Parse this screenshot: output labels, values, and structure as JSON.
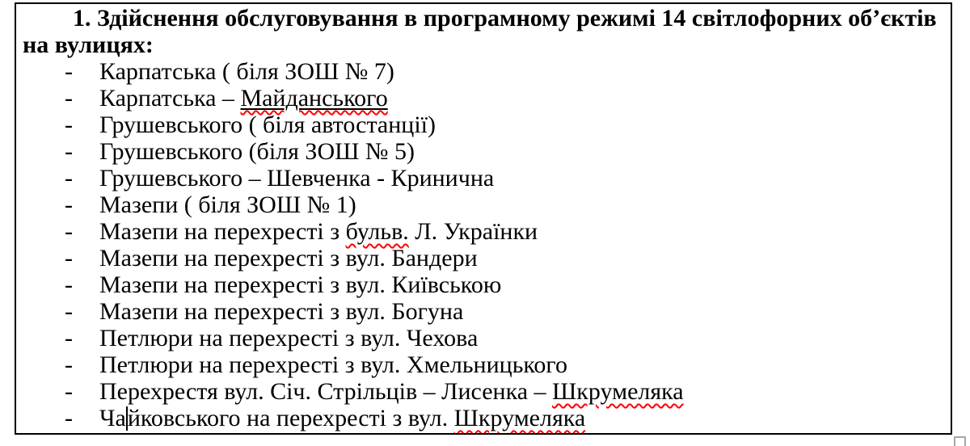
{
  "document": {
    "title": "1. Здійснення обслуговування в програмному режимі 14 світлофорних об’єктів на вулицях:",
    "list_marker": "-",
    "items": [
      {
        "segments": [
          {
            "t": "Карпатська ( біля ЗОШ № 7)"
          }
        ]
      },
      {
        "segments": [
          {
            "t": "Карпатська – "
          },
          {
            "t": "Майданського",
            "underline": true,
            "misspelled": true
          }
        ]
      },
      {
        "segments": [
          {
            "t": "Грушевського ( біля автостанції)"
          }
        ]
      },
      {
        "segments": [
          {
            "t": "Грушевського (біля ЗОШ № 5)"
          }
        ]
      },
      {
        "segments": [
          {
            "t": "Грушевського – Шевченка - Кринична"
          }
        ]
      },
      {
        "segments": [
          {
            "t": "Мазепи ( біля ЗОШ № 1)"
          }
        ]
      },
      {
        "segments": [
          {
            "t": "Мазепи на перехресті з "
          },
          {
            "t": "бульв.",
            "misspelled": true
          },
          {
            "t": " Л. Українки"
          }
        ]
      },
      {
        "segments": [
          {
            "t": "Мазепи на перехресті з вул. Бандери"
          }
        ]
      },
      {
        "segments": [
          {
            "t": "Мазепи на перехресті з вул. Київською"
          }
        ]
      },
      {
        "segments": [
          {
            "t": "Мазепи на перехресті з вул. Богуна"
          }
        ]
      },
      {
        "segments": [
          {
            "t": "Петлюри на перехресті з вул. Чехова"
          }
        ]
      },
      {
        "segments": [
          {
            "t": "Петлюри на перехресті з вул. Хмельницького"
          }
        ]
      },
      {
        "segments": [
          {
            "t": "Перехрестя вул. Січ. Стрільців – Лисенка – "
          },
          {
            "t": "Шкрумеляка",
            "misspelled": true
          }
        ]
      },
      {
        "segments": [
          {
            "t": "Ча"
          },
          {
            "caret": true
          },
          {
            "t": "йковського на перехресті з вул. "
          },
          {
            "t": "Шкрумеляка",
            "misspelled": true
          }
        ]
      }
    ],
    "colors": {
      "text": "#000000",
      "border": "#000000",
      "spellcheck_underline": "#ff0000",
      "resize_handle_border": "#a6a6a6",
      "page_background": "#ffffff"
    }
  }
}
